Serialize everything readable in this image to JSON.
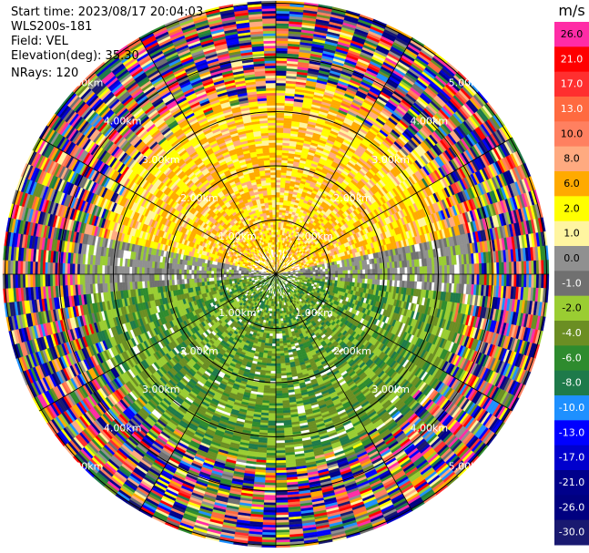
{
  "info": {
    "start_time": "Start time: 2023/08/17 20:04:03",
    "instrument": "WLS200s-181",
    "field": "Field: VEL",
    "elevation": "Elevation(deg): 35.30",
    "nrays": "NRays: 120"
  },
  "chart_data": {
    "type": "heatmap",
    "projection": "polar-ppi",
    "field": "VEL",
    "nrays": 120,
    "elevation_deg": 35.3,
    "ring_labels": [
      "1.00km",
      "2.00km",
      "3.00km",
      "4.00km",
      "5.00km"
    ],
    "colorbar": {
      "unit": "m/s",
      "ticks": [
        "26.0",
        "21.0",
        "17.0",
        "13.0",
        "10.0",
        "8.0",
        "6.0",
        "2.0",
        "1.0",
        "0.0",
        "-1.0",
        "-2.0",
        "-4.0",
        "-6.0",
        "-8.0",
        "-10.0",
        "-13.0",
        "-17.0",
        "-21.0",
        "-26.0",
        "-30.0"
      ],
      "colors": [
        "#ff2ca6",
        "#ff0000",
        "#ff2f2f",
        "#ff6a40",
        "#ff8060",
        "#ffaa80",
        "#ffaa00",
        "#ffff00",
        "#fff5a0",
        "#909090",
        "#707070",
        "#9acd32",
        "#6b8e23",
        "#2e8b2e",
        "#1e7a4a",
        "#1e90ff",
        "#0000ff",
        "#0000cd",
        "#00008b",
        "#000080",
        "#191970"
      ]
    }
  }
}
